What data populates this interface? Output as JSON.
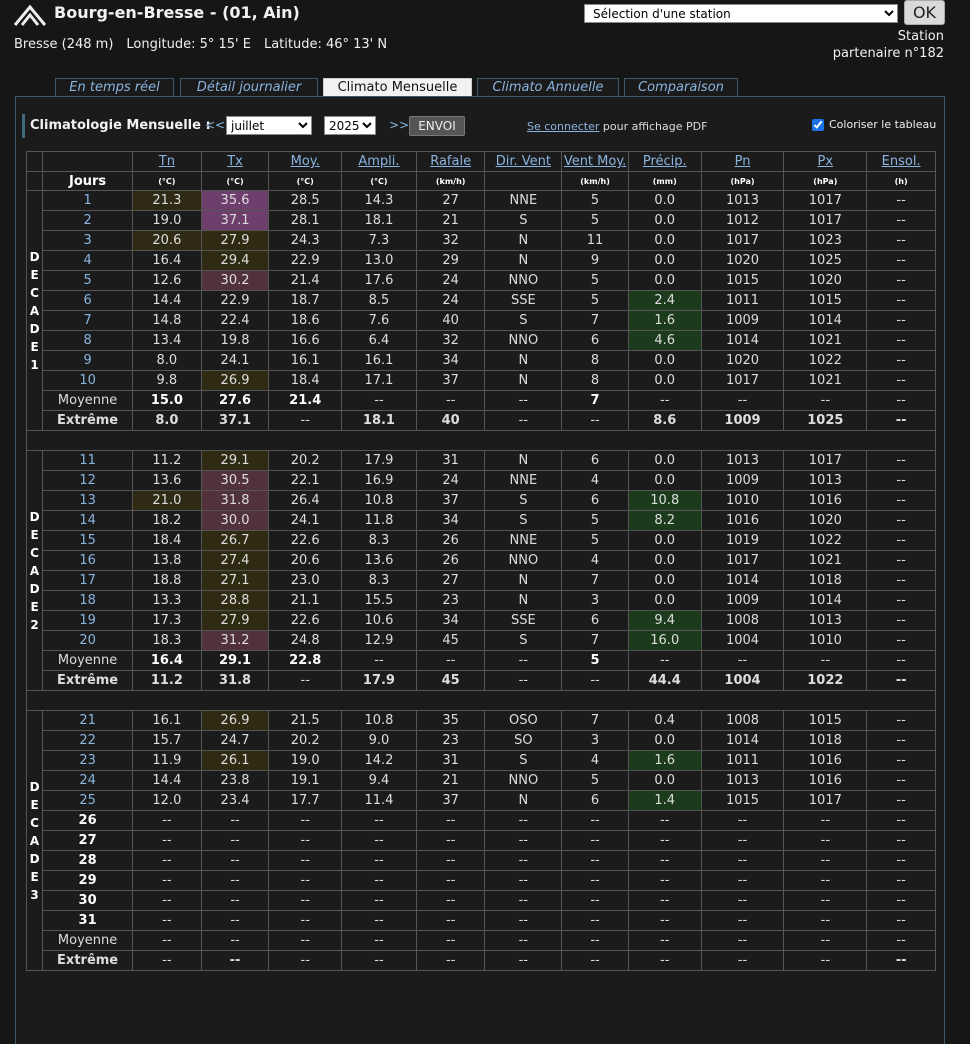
{
  "header": {
    "title": "Bourg-en-Bresse - (01, Ain)",
    "station_select": "Sélection d'une station",
    "ok_label": "OK",
    "location": {
      "name": "Bresse (248 m)",
      "longitude": "Longitude: 5° 15' E",
      "latitude": "Latitude: 46° 13' N"
    },
    "partner_line1": "Station",
    "partner_line2": "partenaire n°182"
  },
  "tabs": [
    {
      "label": "En temps réel",
      "active": false
    },
    {
      "label": "Détail journalier",
      "active": false
    },
    {
      "label": "Climato Mensuelle",
      "active": true
    },
    {
      "label": "Climato Annuelle",
      "active": false
    },
    {
      "label": "Comparaison",
      "active": false
    }
  ],
  "controls": {
    "label": "Climatologie Mensuelle :",
    "prev": "<<",
    "month": "juillet",
    "year": "2025",
    "next": ">>",
    "submit": "ENVOI",
    "connect_link": "Se connecter",
    "connect_text": " pour affichage PDF",
    "colorize_label": "Coloriser le tableau",
    "colorize_checked": true
  },
  "table": {
    "columns": [
      "Tn",
      "Tx",
      "Moy.",
      "Ampli.",
      "Rafale",
      "Dir. Vent",
      "Vent Moy.",
      "Précip.",
      "Pn",
      "Px",
      "Ensol."
    ],
    "jours_label": "Jours",
    "units": [
      "(°C)",
      "(°C)",
      "(°C)",
      "(°C)",
      "(km/h)",
      "",
      "(km/h)",
      "(mm)",
      "(hPa)",
      "(hPa)",
      "(h)"
    ],
    "moyenne_label": "Moyenne",
    "extreme_label": "Extrême",
    "decades": [
      {
        "label": "DECADE1",
        "days": [
          [
            "1",
            "21.3",
            "35.6",
            "28.5",
            "14.3",
            "27",
            "NNE",
            "5",
            "0.0",
            "1013",
            "1017",
            "--"
          ],
          [
            "2",
            "19.0",
            "37.1",
            "28.1",
            "18.1",
            "21",
            "S",
            "5",
            "0.0",
            "1012",
            "1017",
            "--"
          ],
          [
            "3",
            "20.6",
            "27.9",
            "24.3",
            "7.3",
            "32",
            "N",
            "11",
            "0.0",
            "1017",
            "1023",
            "--"
          ],
          [
            "4",
            "16.4",
            "29.4",
            "22.9",
            "13.0",
            "29",
            "N",
            "9",
            "0.0",
            "1020",
            "1025",
            "--"
          ],
          [
            "5",
            "12.6",
            "30.2",
            "21.4",
            "17.6",
            "24",
            "NNO",
            "5",
            "0.0",
            "1015",
            "1020",
            "--"
          ],
          [
            "6",
            "14.4",
            "22.9",
            "18.7",
            "8.5",
            "24",
            "SSE",
            "5",
            "2.4",
            "1011",
            "1015",
            "--"
          ],
          [
            "7",
            "14.8",
            "22.4",
            "18.6",
            "7.6",
            "40",
            "S",
            "7",
            "1.6",
            "1009",
            "1014",
            "--"
          ],
          [
            "8",
            "13.4",
            "19.8",
            "16.6",
            "6.4",
            "32",
            "NNO",
            "6",
            "4.6",
            "1014",
            "1021",
            "--"
          ],
          [
            "9",
            "8.0",
            "24.1",
            "16.1",
            "16.1",
            "34",
            "N",
            "8",
            "0.0",
            "1020",
            "1022",
            "--"
          ],
          [
            "10",
            "9.8",
            "26.9",
            "18.4",
            "17.1",
            "37",
            "N",
            "8",
            "0.0",
            "1017",
            "1021",
            "--"
          ]
        ],
        "moyenne": [
          "15.0",
          "27.6",
          "21.4",
          "--",
          "--",
          "--",
          "7",
          "--",
          "--",
          "--",
          "--"
        ],
        "extreme": [
          "8.0",
          "37.1",
          "--",
          "18.1",
          "40",
          "--",
          "--",
          "8.6",
          "1009",
          "1025",
          "--"
        ]
      },
      {
        "label": "DECADE2",
        "days": [
          [
            "11",
            "11.2",
            "29.1",
            "20.2",
            "17.9",
            "31",
            "N",
            "6",
            "0.0",
            "1013",
            "1017",
            "--"
          ],
          [
            "12",
            "13.6",
            "30.5",
            "22.1",
            "16.9",
            "24",
            "NNE",
            "4",
            "0.0",
            "1009",
            "1013",
            "--"
          ],
          [
            "13",
            "21.0",
            "31.8",
            "26.4",
            "10.8",
            "37",
            "S",
            "6",
            "10.8",
            "1010",
            "1016",
            "--"
          ],
          [
            "14",
            "18.2",
            "30.0",
            "24.1",
            "11.8",
            "34",
            "S",
            "5",
            "8.2",
            "1016",
            "1020",
            "--"
          ],
          [
            "15",
            "18.4",
            "26.7",
            "22.6",
            "8.3",
            "26",
            "NNE",
            "5",
            "0.0",
            "1019",
            "1022",
            "--"
          ],
          [
            "16",
            "13.8",
            "27.4",
            "20.6",
            "13.6",
            "26",
            "NNO",
            "4",
            "0.0",
            "1017",
            "1021",
            "--"
          ],
          [
            "17",
            "18.8",
            "27.1",
            "23.0",
            "8.3",
            "27",
            "N",
            "7",
            "0.0",
            "1014",
            "1018",
            "--"
          ],
          [
            "18",
            "13.3",
            "28.8",
            "21.1",
            "15.5",
            "23",
            "N",
            "3",
            "0.0",
            "1009",
            "1014",
            "--"
          ],
          [
            "19",
            "17.3",
            "27.9",
            "22.6",
            "10.6",
            "34",
            "SSE",
            "6",
            "9.4",
            "1008",
            "1013",
            "--"
          ],
          [
            "20",
            "18.3",
            "31.2",
            "24.8",
            "12.9",
            "45",
            "S",
            "7",
            "16.0",
            "1004",
            "1010",
            "--"
          ]
        ],
        "moyenne": [
          "16.4",
          "29.1",
          "22.8",
          "--",
          "--",
          "--",
          "5",
          "--",
          "--",
          "--",
          "--"
        ],
        "extreme": [
          "11.2",
          "31.8",
          "--",
          "17.9",
          "45",
          "--",
          "--",
          "44.4",
          "1004",
          "1022",
          "--"
        ]
      },
      {
        "label": "DECADE3",
        "days": [
          [
            "21",
            "16.1",
            "26.9",
            "21.5",
            "10.8",
            "35",
            "OSO",
            "7",
            "0.4",
            "1008",
            "1015",
            "--"
          ],
          [
            "22",
            "15.7",
            "24.7",
            "20.2",
            "9.0",
            "23",
            "SO",
            "3",
            "0.0",
            "1014",
            "1018",
            "--"
          ],
          [
            "23",
            "11.9",
            "26.1",
            "19.0",
            "14.2",
            "31",
            "S",
            "4",
            "1.6",
            "1011",
            "1016",
            "--"
          ],
          [
            "24",
            "14.4",
            "23.8",
            "19.1",
            "9.4",
            "21",
            "NNO",
            "5",
            "0.0",
            "1013",
            "1016",
            "--"
          ],
          [
            "25",
            "12.0",
            "23.4",
            "17.7",
            "11.4",
            "37",
            "N",
            "6",
            "1.4",
            "1015",
            "1017",
            "--"
          ],
          [
            "26",
            "--",
            "--",
            "--",
            "--",
            "--",
            "--",
            "--",
            "--",
            "--",
            "--",
            "--"
          ],
          [
            "27",
            "--",
            "--",
            "--",
            "--",
            "--",
            "--",
            "--",
            "--",
            "--",
            "--",
            "--"
          ],
          [
            "28",
            "--",
            "--",
            "--",
            "--",
            "--",
            "--",
            "--",
            "--",
            "--",
            "--",
            "--"
          ],
          [
            "29",
            "--",
            "--",
            "--",
            "--",
            "--",
            "--",
            "--",
            "--",
            "--",
            "--",
            "--"
          ],
          [
            "30",
            "--",
            "--",
            "--",
            "--",
            "--",
            "--",
            "--",
            "--",
            "--",
            "--",
            "--"
          ],
          [
            "31",
            "--",
            "--",
            "--",
            "--",
            "--",
            "--",
            "--",
            "--",
            "--",
            "--",
            "--"
          ]
        ],
        "moyenne": [
          "--",
          "--",
          "--",
          "--",
          "--",
          "--",
          "--",
          "--",
          "--",
          "--",
          "--"
        ],
        "extreme": [
          "--",
          "--",
          "--",
          "--",
          "--",
          "--",
          "--",
          "--",
          "--",
          "--",
          "--"
        ]
      }
    ]
  }
}
